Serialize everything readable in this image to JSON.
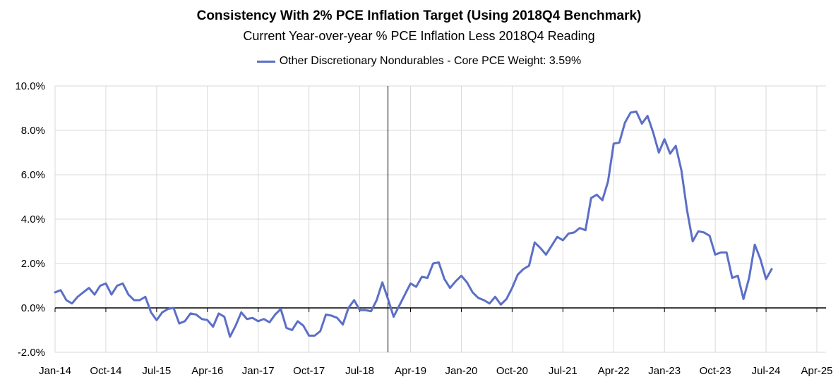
{
  "chart_data": {
    "type": "line",
    "title": "Consistency With 2% PCE Inflation Target (Using 2018Q4 Benchmark)",
    "subtitle": "Current Year-over-year % PCE Inflation Less 2018Q4 Reading",
    "ylim": [
      -2.0,
      10.0
    ],
    "y_ticks": [
      "-2.0%",
      "0.0%",
      "2.0%",
      "4.0%",
      "6.0%",
      "8.0%",
      "10.0%"
    ],
    "y_tick_values": [
      -2,
      0,
      2,
      4,
      6,
      8,
      10
    ],
    "x_ticks": [
      "Jan-14",
      "Oct-14",
      "Jul-15",
      "Apr-16",
      "Jan-17",
      "Oct-17",
      "Jul-18",
      "Apr-19",
      "Jan-20",
      "Oct-20",
      "Jul-21",
      "Apr-22",
      "Jan-23",
      "Oct-23",
      "Jul-24",
      "Apr-25"
    ],
    "x_tick_index": [
      0,
      9,
      18,
      27,
      36,
      45,
      54,
      63,
      72,
      81,
      90,
      99,
      108,
      117,
      126,
      135
    ],
    "x_start": "Jan-14",
    "benchmark_line_label": "2018Q4",
    "benchmark_index": 59,
    "grid": true,
    "legend_position": "top",
    "series": [
      {
        "name": "Other Discretionary Nondurables - Core PCE Weight: 3.59%",
        "color": "#5B6FC7",
        "values": [
          0.7,
          0.8,
          0.35,
          0.2,
          0.5,
          0.7,
          0.9,
          0.6,
          1.0,
          1.1,
          0.6,
          1.0,
          1.1,
          0.6,
          0.35,
          0.35,
          0.5,
          -0.2,
          -0.55,
          -0.2,
          -0.05,
          0.0,
          -0.7,
          -0.6,
          -0.25,
          -0.3,
          -0.5,
          -0.55,
          -0.85,
          -0.25,
          -0.4,
          -1.3,
          -0.8,
          -0.2,
          -0.5,
          -0.45,
          -0.6,
          -0.5,
          -0.65,
          -0.3,
          -0.05,
          -0.9,
          -1.0,
          -0.6,
          -0.8,
          -1.25,
          -1.25,
          -1.05,
          -0.3,
          -0.35,
          -0.45,
          -0.75,
          0.0,
          0.35,
          -0.1,
          -0.1,
          -0.15,
          0.35,
          1.15,
          0.4,
          -0.4,
          0.1,
          0.6,
          1.1,
          0.95,
          1.4,
          1.35,
          2.0,
          2.05,
          1.3,
          0.9,
          1.2,
          1.45,
          1.15,
          0.7,
          0.45,
          0.35,
          0.2,
          0.5,
          0.15,
          0.4,
          0.9,
          1.5,
          1.75,
          1.9,
          2.95,
          2.7,
          2.4,
          2.8,
          3.2,
          3.05,
          3.35,
          3.4,
          3.6,
          3.5,
          4.95,
          5.1,
          4.85,
          5.7,
          7.4,
          7.45,
          8.35,
          8.8,
          8.85,
          8.3,
          8.65,
          7.9,
          7.0,
          7.6,
          6.95,
          7.3,
          6.2,
          4.4,
          3.0,
          3.45,
          3.4,
          3.25,
          2.4,
          2.5,
          2.5,
          1.35,
          1.45,
          0.4,
          1.35,
          2.85,
          2.2,
          1.3,
          1.75
        ]
      }
    ]
  }
}
